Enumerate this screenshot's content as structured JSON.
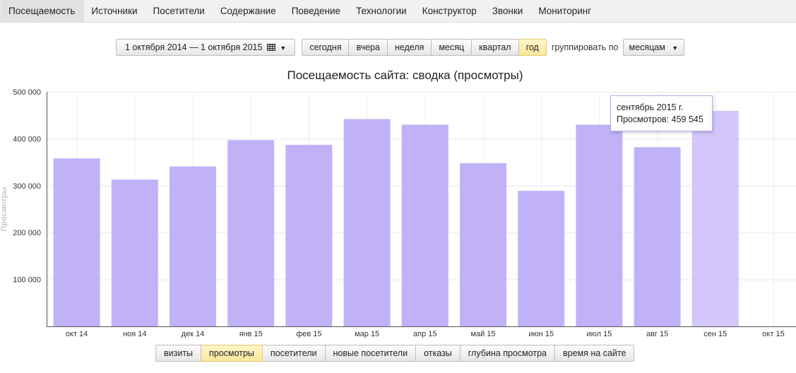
{
  "nav": {
    "tabs": [
      "Посещаемость",
      "Источники",
      "Посетители",
      "Содержание",
      "Поведение",
      "Технологии",
      "Конструктор",
      "Звонки",
      "Мониторинг"
    ],
    "active_index": 0
  },
  "controls": {
    "date_range": "1 октября 2014 — 1 октября 2015",
    "periods": [
      "сегодня",
      "вчера",
      "неделя",
      "месяц",
      "квартал",
      "год"
    ],
    "selected_period_index": 5,
    "group_label": "группировать по",
    "group_value": "месяцам"
  },
  "chart_data": {
    "type": "bar",
    "title": "Посещаемость сайта: сводка (просмотры)",
    "ylabel": "Просмотры",
    "xlabel": "",
    "ylim": [
      0,
      500000
    ],
    "yticks": [
      100000,
      200000,
      300000,
      400000,
      500000
    ],
    "ytick_labels": [
      "100 000",
      "200 000",
      "300 000",
      "400 000",
      "500 000"
    ],
    "categories": [
      "окт 14",
      "ноя 14",
      "дек 14",
      "янв 15",
      "фев 15",
      "мар 15",
      "апр 15",
      "май 15",
      "июн 15",
      "июл 15",
      "авг 15",
      "сен 15",
      "окт 15"
    ],
    "values": [
      358000,
      313000,
      341000,
      397000,
      387000,
      442000,
      430000,
      348000,
      289000,
      430000,
      382000,
      459545,
      null
    ],
    "highlight_index": 11,
    "bar_color": "#c1b2f7",
    "highlight_color": "#d2c6fa",
    "grid": true,
    "legend": "none"
  },
  "tooltip": {
    "line1": "сентябрь 2015 г.",
    "line2": "Просмотров: 459 545"
  },
  "metrics": {
    "tabs": [
      "визиты",
      "просмотры",
      "посетители",
      "новые посетители",
      "отказы",
      "глубина просмотра",
      "время на сайте"
    ],
    "selected_index": 1
  }
}
